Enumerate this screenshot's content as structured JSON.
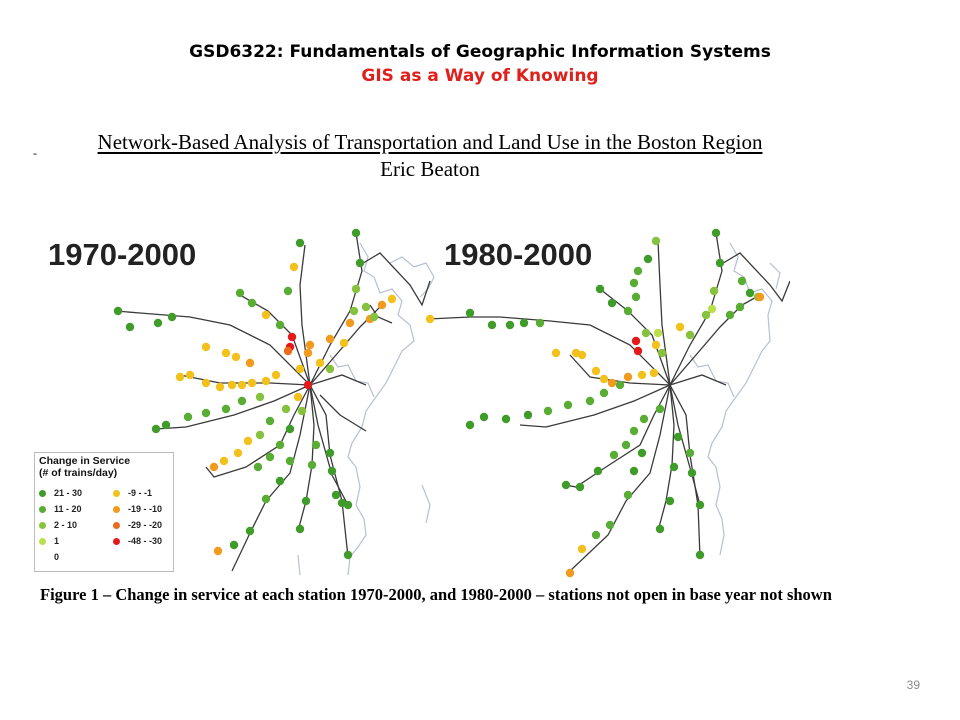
{
  "header": {
    "course_title": "GSD6322: Fundamentals of Geographic Information Systems",
    "subtitle": "GIS as a Way of Knowing"
  },
  "figure": {
    "title": "Network-Based Analysis of Transportation and Land Use in the Boston Region",
    "author": "Eric Beaton",
    "dash": "-",
    "maps": [
      {
        "label": "1970-2000"
      },
      {
        "label": "1980-2000"
      }
    ],
    "legend": {
      "title_line1": "Change in Service",
      "title_line2": "(# of trains/day)",
      "items": [
        {
          "label": "21 - 30",
          "color": "#3f9b2a"
        },
        {
          "label": "11 - 20",
          "color": "#59ad34"
        },
        {
          "label": "2 - 10",
          "color": "#86c23d"
        },
        {
          "label": "1",
          "color": "#b9e04a"
        },
        {
          "label": "0",
          "color": ""
        },
        {
          "label": "-9 - -1",
          "color": "#f2c11b"
        },
        {
          "label": "-19 - -10",
          "color": "#f29a1d"
        },
        {
          "label": "-29 - -20",
          "color": "#ec6a1c"
        },
        {
          "label": "-48 - -30",
          "color": "#e3191b"
        }
      ]
    },
    "caption": "Figure 1 – Change in service at each station 1970-2000, and 1980-2000 – stations not open in base year not shown"
  },
  "page_number": "39",
  "colors": {
    "subtitle_red": "#e0201b",
    "rail_line": "#3a3a3a",
    "coast": "#b7bfd3"
  }
}
